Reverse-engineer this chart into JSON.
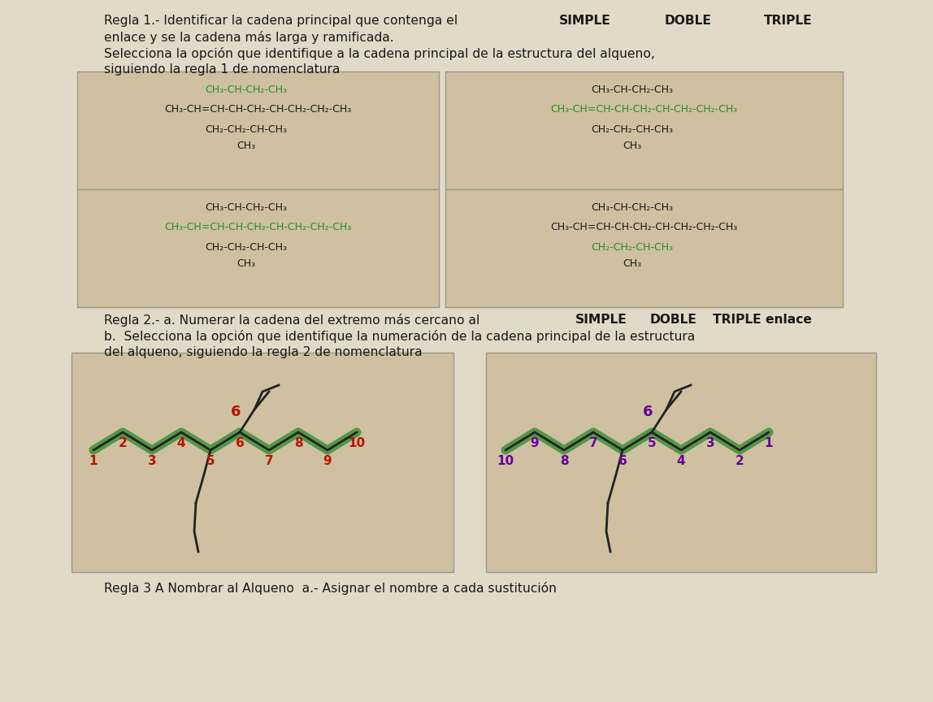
{
  "bg_color": "#e2d9c8",
  "title_regla1": "Regla 1.- Identificar la cadena principal que contenga el",
  "title_regla1_line2": "enlace y se la cadena más larga y ramificada.",
  "title_regla1_line3": "Selecciona la opción que identifique a la cadena principal de la estructura del alqueno,",
  "title_regla1_line4": "siguiendo la regla 1 de nomenclatura",
  "regla2_line1": "Regla 2.- a. Numerar la cadena del extremo más cercano al",
  "regla2_line2": "b.  Selecciona la opción que identifique la numeración de la cadena principal de la estructura",
  "regla2_line3": "del alqueno, siguiendo la regla 2 de nomenclatura",
  "regla3_line": "Regla 3 A Nombrar al Alqueno  a.- Asignar el nombre a cada sustitución",
  "text_color": "#1a1a1a",
  "green_color": "#2a8a2a",
  "red_num_color": "#bb1100",
  "purple_num_color": "#660099",
  "box_bg": "#cec0a0",
  "box_border": "#999988",
  "branch_top": "CH₃-CH-CH₂-CH₃",
  "main_chain": "CH₃-CH=CH-CH-CH₂-CH-CH₂-CH₂-CH₃",
  "branch_bot1": "CH₂-CH₂-CH-CH₃",
  "branch_bot2": "CH₃",
  "box1_top_color": "green",
  "box1_main_color": "black",
  "box1_bot_color": "black",
  "box2_top_color": "black",
  "box2_main_color": "green",
  "box2_bot_color": "black",
  "box3_top_color": "black",
  "box3_main_color": "green",
  "box3_bot_color": "black",
  "box4_top_color": "black",
  "box4_main_color": "black",
  "box4_bot_color": "green"
}
